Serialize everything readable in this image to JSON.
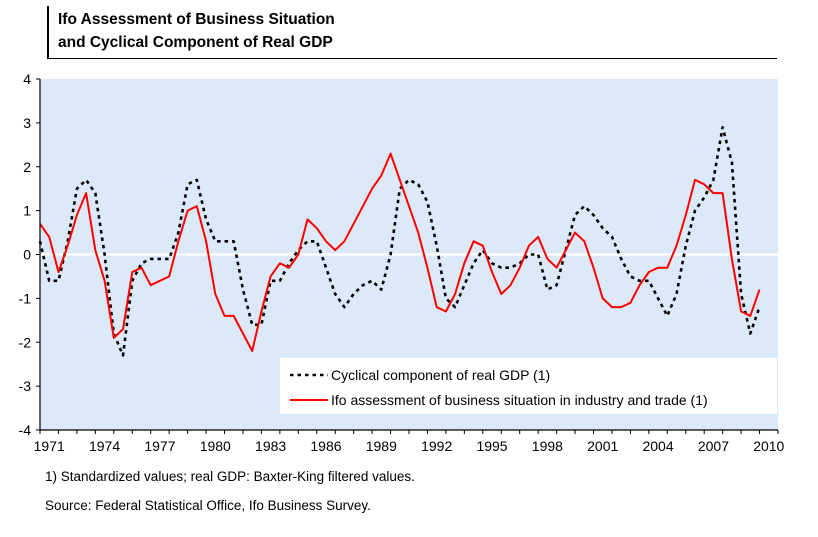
{
  "chart_data": {
    "type": "line",
    "title_line1": "Ifo Assessment of Business Situation",
    "title_line2": "and Cyclical Component of Real GDP",
    "footnote": "1) Standardized values; real GDP: Baxter-King filtered values.",
    "source": "Source:  Federal Statistical Office, Ifo Business Survey.",
    "xlim": [
      1971,
      2011
    ],
    "ylim": [
      -4,
      4
    ],
    "yticks": [
      "4",
      "3",
      "2",
      "1",
      "0",
      "-1",
      "-2",
      "-3",
      "-4"
    ],
    "xticks": [
      "1971",
      "1974",
      "1977",
      "1980",
      "1983",
      "1986",
      "1989",
      "1992",
      "1995",
      "1998",
      "2001",
      "2004",
      "2007",
      "2010"
    ],
    "background_color": "#dbe9f8",
    "zero_line_color": "#ffffff",
    "legend_position": "bottom-right",
    "series": [
      {
        "name": "Cyclical component of real GDP (1)",
        "style": "dotted",
        "color": "#000000",
        "x": [
          1971.0,
          1971.5,
          1972.0,
          1972.5,
          1973.0,
          1973.5,
          1974.0,
          1974.5,
          1975.0,
          1975.5,
          1976.0,
          1976.5,
          1977.0,
          1977.5,
          1978.0,
          1978.5,
          1979.0,
          1979.5,
          1980.0,
          1980.5,
          1981.0,
          1981.5,
          1982.0,
          1982.5,
          1983.0,
          1983.5,
          1984.0,
          1984.5,
          1985.0,
          1985.5,
          1986.0,
          1986.5,
          1987.0,
          1987.5,
          1988.0,
          1988.5,
          1989.0,
          1989.5,
          1990.0,
          1990.5,
          1991.0,
          1991.5,
          1992.0,
          1992.5,
          1993.0,
          1993.5,
          1994.0,
          1994.5,
          1995.0,
          1995.5,
          1996.0,
          1996.5,
          1997.0,
          1997.5,
          1998.0,
          1998.5,
          1999.0,
          1999.5,
          2000.0,
          2000.5,
          2001.0,
          2001.5,
          2002.0,
          2002.5,
          2003.0,
          2003.5,
          2004.0,
          2004.5,
          2005.0,
          2005.5,
          2006.0,
          2006.5,
          2007.0,
          2007.5,
          2008.0,
          2008.5,
          2009.0,
          2009.5,
          2010.0
        ],
        "values": [
          0.3,
          -0.6,
          -0.6,
          0.3,
          1.5,
          1.7,
          1.4,
          0.0,
          -1.8,
          -2.3,
          -0.6,
          -0.2,
          -0.1,
          -0.1,
          -0.1,
          0.5,
          1.6,
          1.7,
          0.8,
          0.3,
          0.3,
          0.3,
          -0.8,
          -1.6,
          -1.6,
          -0.6,
          -0.6,
          -0.2,
          0.1,
          0.3,
          0.3,
          -0.3,
          -0.9,
          -1.2,
          -0.9,
          -0.7,
          -0.6,
          -0.8,
          0.0,
          1.5,
          1.7,
          1.6,
          1.2,
          0.2,
          -1.0,
          -1.2,
          -0.7,
          -0.2,
          0.1,
          -0.2,
          -0.3,
          -0.3,
          -0.2,
          0.0,
          0.0,
          -0.8,
          -0.7,
          0.1,
          0.9,
          1.1,
          0.9,
          0.6,
          0.4,
          -0.1,
          -0.5,
          -0.6,
          -0.6,
          -1.0,
          -1.4,
          -0.9,
          0.2,
          1.0,
          1.3,
          1.7,
          2.9,
          2.1,
          -0.9,
          -1.8,
          -1.2
        ]
      },
      {
        "name": "Ifo assessment of business situation in industry and trade (1)",
        "style": "solid",
        "color": "#ff0000",
        "x": [
          1971.0,
          1971.5,
          1972.0,
          1972.5,
          1973.0,
          1973.5,
          1974.0,
          1974.5,
          1975.0,
          1975.5,
          1976.0,
          1976.5,
          1977.0,
          1977.5,
          1978.0,
          1978.5,
          1979.0,
          1979.5,
          1980.0,
          1980.5,
          1981.0,
          1981.5,
          1982.0,
          1982.5,
          1983.0,
          1983.5,
          1984.0,
          1984.5,
          1985.0,
          1985.5,
          1986.0,
          1986.5,
          1987.0,
          1987.5,
          1988.0,
          1988.5,
          1989.0,
          1989.5,
          1990.0,
          1990.5,
          1991.0,
          1991.5,
          1992.0,
          1992.5,
          1993.0,
          1993.5,
          1994.0,
          1994.5,
          1995.0,
          1995.5,
          1996.0,
          1996.5,
          1997.0,
          1997.5,
          1998.0,
          1998.5,
          1999.0,
          1999.5,
          2000.0,
          2000.5,
          2001.0,
          2001.5,
          2002.0,
          2002.5,
          2003.0,
          2003.5,
          2004.0,
          2004.5,
          2005.0,
          2005.5,
          2006.0,
          2006.5,
          2007.0,
          2007.5,
          2008.0,
          2008.5,
          2009.0,
          2009.5,
          2010.0
        ],
        "values": [
          0.7,
          0.4,
          -0.4,
          0.2,
          0.9,
          1.4,
          0.1,
          -0.6,
          -1.9,
          -1.7,
          -0.4,
          -0.3,
          -0.7,
          -0.6,
          -0.5,
          0.3,
          1.0,
          1.1,
          0.3,
          -0.9,
          -1.4,
          -1.4,
          -1.8,
          -2.2,
          -1.3,
          -0.5,
          -0.2,
          -0.3,
          0.0,
          0.8,
          0.6,
          0.3,
          0.1,
          0.3,
          0.7,
          1.1,
          1.5,
          1.8,
          2.3,
          1.7,
          1.1,
          0.5,
          -0.3,
          -1.2,
          -1.3,
          -0.9,
          -0.2,
          0.3,
          0.2,
          -0.4,
          -0.9,
          -0.7,
          -0.3,
          0.2,
          0.4,
          -0.1,
          -0.3,
          0.1,
          0.5,
          0.3,
          -0.3,
          -1.0,
          -1.2,
          -1.2,
          -1.1,
          -0.7,
          -0.4,
          -0.3,
          -0.3,
          0.2,
          0.9,
          1.7,
          1.6,
          1.4,
          1.4,
          -0.1,
          -1.3,
          -1.4,
          -0.8
        ]
      }
    ]
  }
}
